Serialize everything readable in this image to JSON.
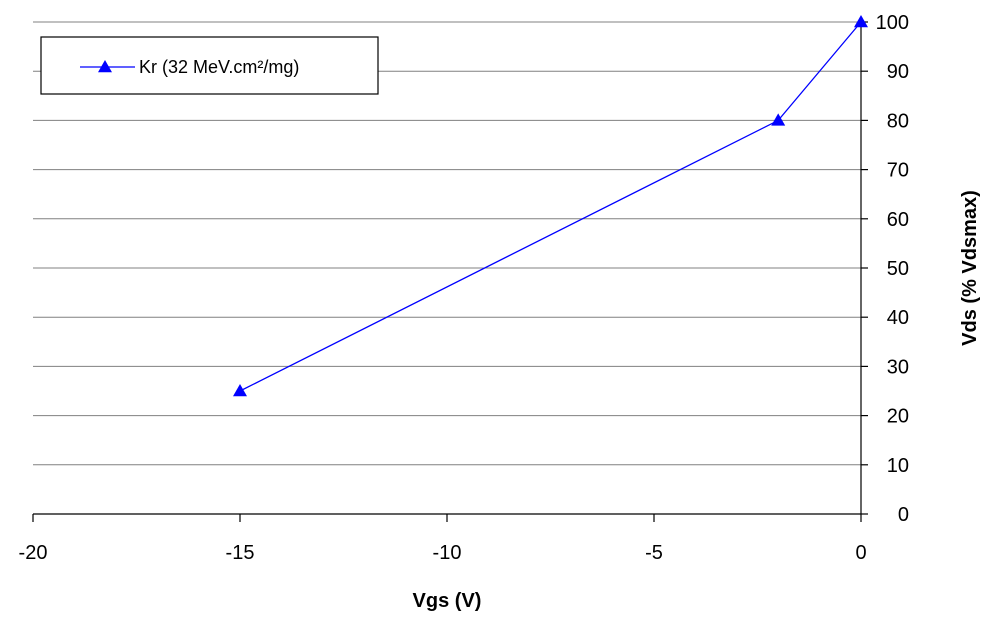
{
  "chart_data": {
    "type": "line",
    "title": "",
    "xlabel": "Vgs (V)",
    "ylabel": "Vds (% Vdsmax)",
    "xlim": [
      -20,
      0
    ],
    "ylim": [
      0,
      100
    ],
    "xticks": [
      -20,
      -15,
      -10,
      -5,
      0
    ],
    "yticks": [
      0,
      10,
      20,
      30,
      40,
      50,
      60,
      70,
      80,
      90,
      100
    ],
    "grid": "horizontal",
    "y_axis_side": "right",
    "legend_position": "top-left",
    "series": [
      {
        "name": "Kr (32 MeV.cm²/mg)",
        "color": "#0000ff",
        "marker": "triangle",
        "x": [
          -15,
          -2,
          0
        ],
        "y": [
          25,
          80,
          100
        ]
      }
    ]
  }
}
